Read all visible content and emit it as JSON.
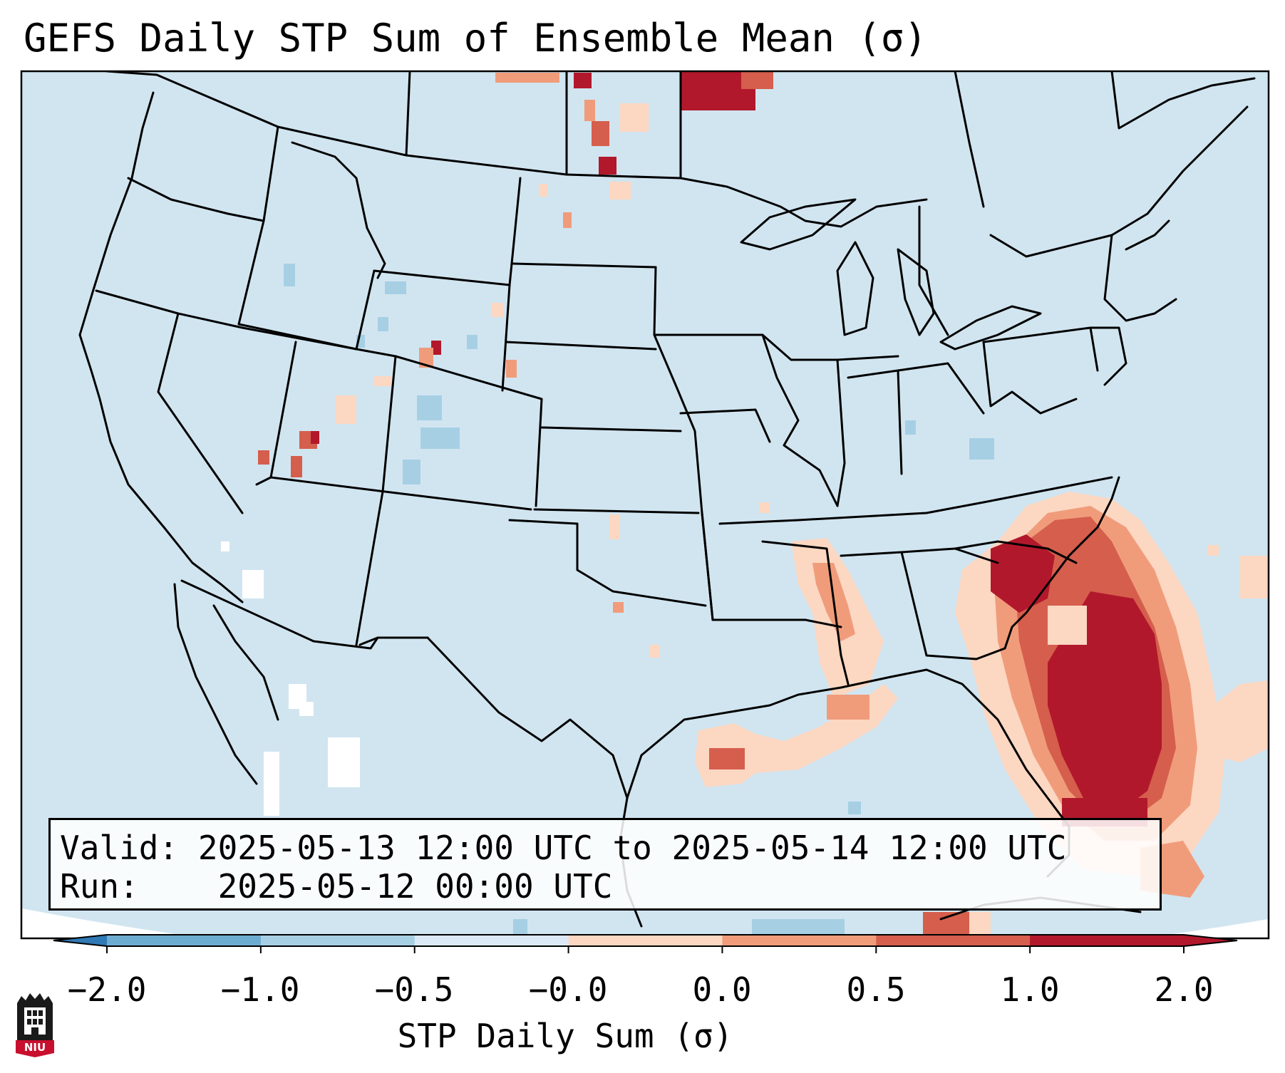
{
  "title": "GEFS Daily STP Sum of Ensemble Mean (σ)",
  "info_box": {
    "valid_label": "Valid:",
    "valid_value": "2025-05-13 12:00 UTC to 2025-05-14 12:00 UTC",
    "run_label": "Run:",
    "run_value": "2025-05-12 00:00 UTC"
  },
  "colorbar": {
    "label": "STP Daily Sum (σ)",
    "ticks": [
      "−2.0",
      "−1.0",
      "−0.5",
      "−0.0",
      "0.0",
      "0.5",
      "1.0",
      "2.0"
    ],
    "colors": [
      "#2f79b5",
      "#6dacd1",
      "#a6cfe4",
      "#dbe9f6",
      "#fcd7c2",
      "#f09c7b",
      "#d55e4d",
      "#b2182b"
    ],
    "extend": "both"
  },
  "map": {
    "background_color": "#d1e5f0",
    "region": "Contiguous United States with southern Canada, northern Mexico, Gulf of Mexico and western Atlantic"
  },
  "logo": {
    "text": "NIU"
  }
}
